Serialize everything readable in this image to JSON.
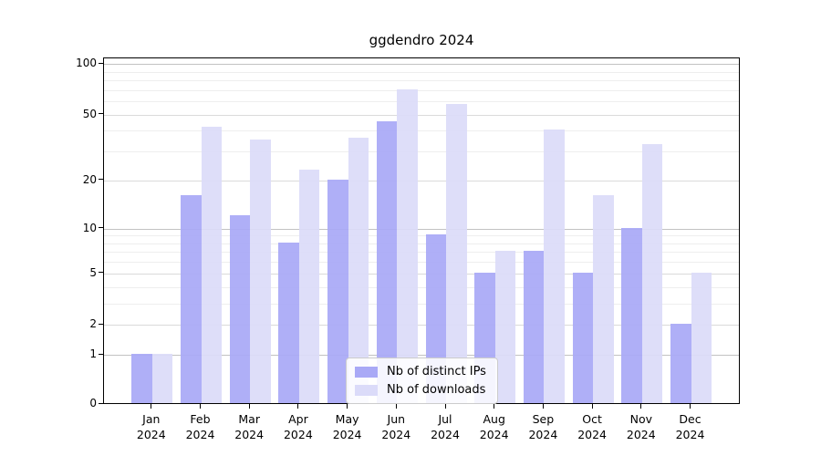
{
  "title": "ggdendro 2024",
  "legend": {
    "items": [
      {
        "label": "Nb of distinct IPs",
        "series_key": "ips"
      },
      {
        "label": "Nb of downloads",
        "series_key": "downloads"
      }
    ]
  },
  "colors": {
    "bar_ips": "#a9a9f6",
    "bar_downloads": "#dbdbf9",
    "grid_decade": "#c2c2c2",
    "grid_labeled": "#dadada",
    "grid_minor": "#eeeeee",
    "axis": "#000000",
    "legend_border": "#cccccc"
  },
  "chart_data": {
    "type": "bar",
    "title": "ggdendro 2024",
    "categories": [
      "Jan 2024",
      "Feb 2024",
      "Mar 2024",
      "Apr 2024",
      "May 2024",
      "Jun 2024",
      "Jul 2024",
      "Aug 2024",
      "Sep 2024",
      "Oct 2024",
      "Nov 2024",
      "Dec 2024"
    ],
    "x_months": [
      "Jan",
      "Feb",
      "Mar",
      "Apr",
      "May",
      "Jun",
      "Jul",
      "Aug",
      "Sep",
      "Oct",
      "Nov",
      "Dec"
    ],
    "x_year": "2024",
    "series": [
      {
        "name": "Nb of distinct IPs",
        "values": [
          1,
          16,
          12,
          8,
          20,
          45,
          9,
          5,
          7,
          5,
          10,
          2
        ]
      },
      {
        "name": "Nb of downloads",
        "values": [
          1,
          42,
          35,
          23,
          36,
          70,
          57,
          7,
          40,
          16,
          33,
          5
        ]
      }
    ],
    "yscale": "log1p",
    "ylim": [
      0,
      108
    ],
    "y_ticks": [
      0,
      1,
      2,
      5,
      10,
      20,
      50,
      100
    ],
    "y_decade_ticks": [
      1,
      10,
      100
    ],
    "y_minor_gridlines": [
      3,
      4,
      6,
      7,
      8,
      9,
      30,
      40,
      60,
      70,
      80,
      90
    ],
    "xlabel": "",
    "ylabel": "",
    "legend_position": "lower center inside",
    "grid": "horizontal major+minor"
  }
}
